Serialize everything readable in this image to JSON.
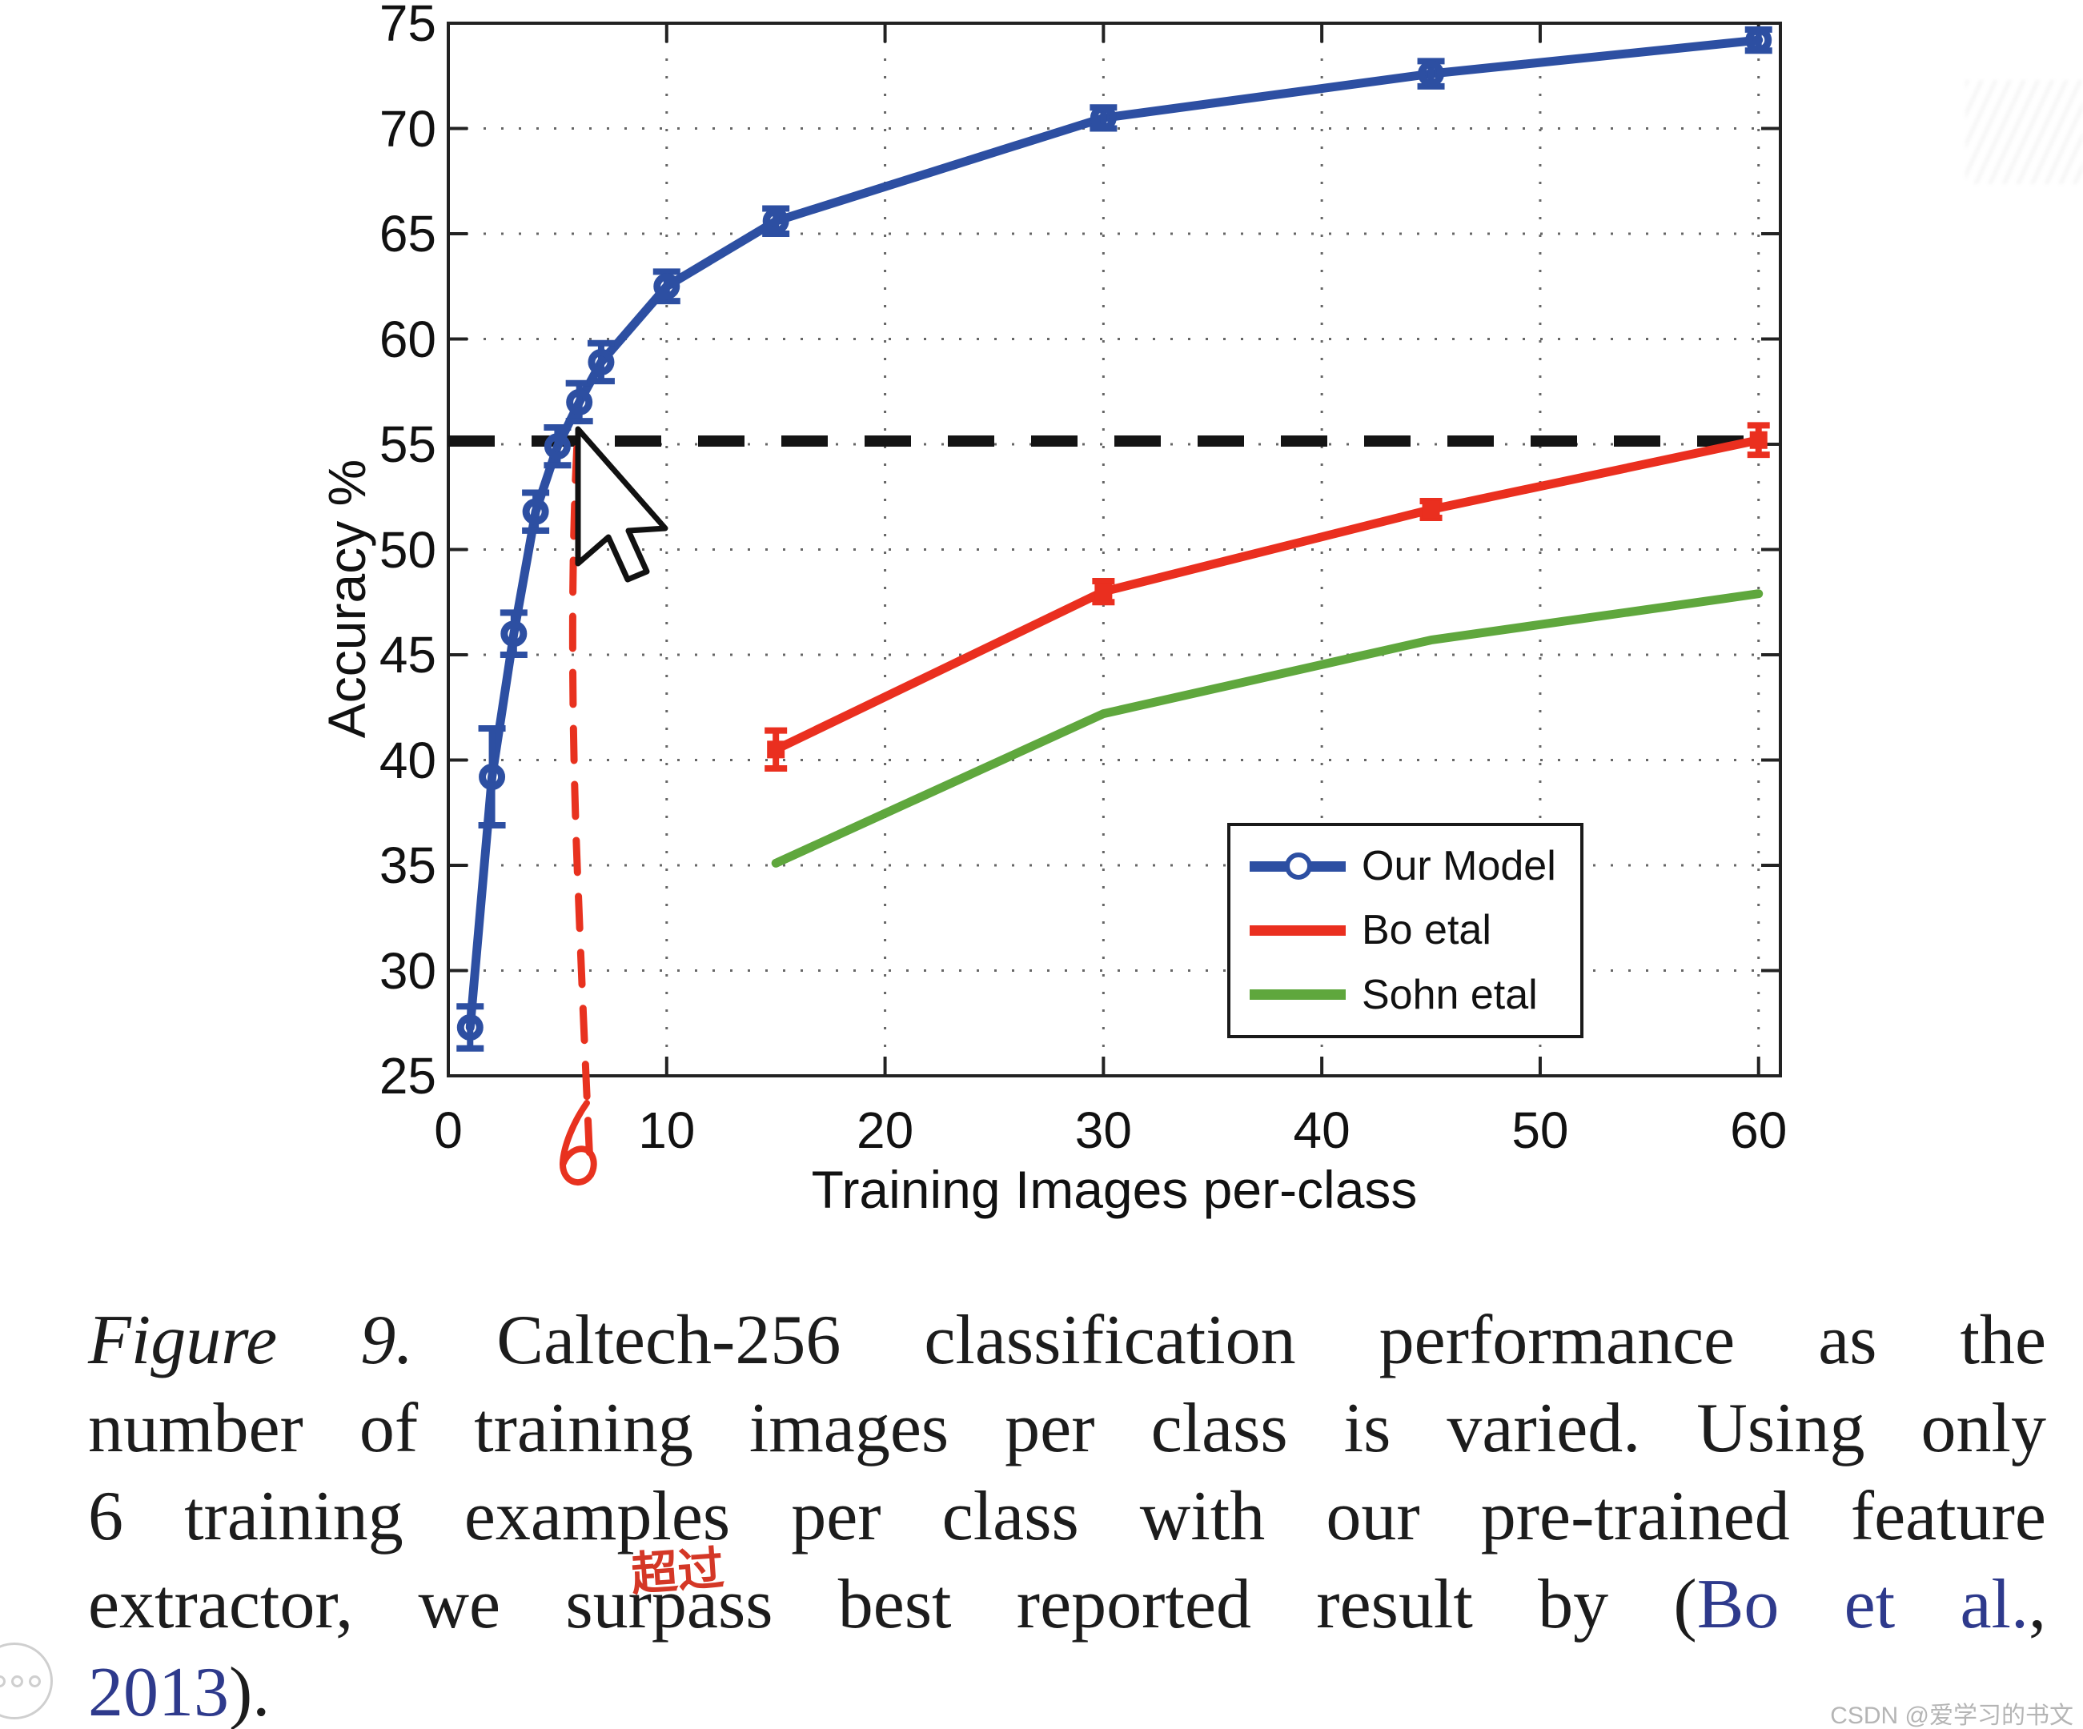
{
  "chart_data": {
    "type": "line",
    "xlabel": "Training Images per-class",
    "ylabel": "Accuracy %",
    "xlim": [
      0,
      61
    ],
    "ylim": [
      25,
      75
    ],
    "xticks": [
      0,
      10,
      20,
      30,
      40,
      50,
      60
    ],
    "yticks": [
      25,
      30,
      35,
      40,
      45,
      50,
      55,
      60,
      65,
      70,
      75
    ],
    "grid": "dotted",
    "reference_line": {
      "y": 55.15,
      "style": "dashed",
      "color": "#141414"
    },
    "series": [
      {
        "name": "Our Model",
        "color": "#2d4fa2",
        "marker": "open-circle",
        "x": [
          1,
          2,
          3,
          4,
          5,
          6,
          7,
          10,
          15,
          30,
          45,
          60
        ],
        "y": [
          27.3,
          39.2,
          46.0,
          51.8,
          54.9,
          57.0,
          58.9,
          62.5,
          65.6,
          70.5,
          72.6,
          74.2
        ],
        "err": [
          1.0,
          2.3,
          1.0,
          0.9,
          0.9,
          0.9,
          0.9,
          0.7,
          0.6,
          0.5,
          0.6,
          0.5
        ]
      },
      {
        "name": "Bo etal",
        "color": "#ea2f1f",
        "marker": "square",
        "x": [
          15,
          30,
          45,
          60
        ],
        "y": [
          40.5,
          48.0,
          51.9,
          55.2
        ],
        "err": [
          0.9,
          0.5,
          0.4,
          0.7
        ]
      },
      {
        "name": "Sohn etal",
        "color": "#5fa73d",
        "marker": "none",
        "x": [
          15,
          30,
          45,
          60
        ],
        "y": [
          35.1,
          42.2,
          45.7,
          47.9
        ],
        "err": [
          0,
          0,
          0,
          0
        ]
      }
    ],
    "legend": {
      "position": "bottom-right",
      "entries": [
        "Our Model",
        "Bo etal",
        "Sohn etal"
      ]
    },
    "annotations": {
      "vertical_line": {
        "x": 5.85,
        "color": "#e8321f",
        "style": "hand-drawn-dashed"
      },
      "x_mark_label": "6",
      "x_mark_color": "#e8321f"
    }
  },
  "caption": {
    "cite_color": "#2e3a8c",
    "lines": [
      [
        {
          "t": "Figure 9.",
          "s": "italic"
        },
        {
          "t": " Caltech-256 classification performance as the",
          "s": "normal"
        }
      ],
      [
        {
          "t": "number of training images per class is varied. Using only",
          "s": "normal"
        }
      ],
      [
        {
          "t": "6 training examples per class with our pre-trained feature",
          "s": "normal"
        }
      ],
      [
        {
          "t": "extractor, we surpass best reported result by (",
          "s": "normal"
        },
        {
          "t": "Bo et al.",
          "s": "cite"
        },
        {
          "t": ",",
          "s": "normal"
        }
      ],
      [
        {
          "t": "2013",
          "s": "cite"
        },
        {
          "t": ").",
          "s": "normal"
        }
      ]
    ],
    "handwritten_note": "超过",
    "handwritten_note_color": "#d43726"
  },
  "watermark": {
    "text": "CSDN @爱学习的书文",
    "color": "#b5b5b5"
  },
  "icons": {
    "cursor": "mouse-arrow-cursor",
    "player_button": "three-dots-circle"
  }
}
